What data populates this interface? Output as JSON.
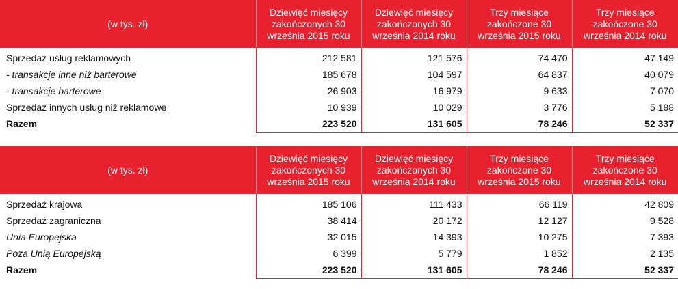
{
  "table1": {
    "unit_label": "(w tys. zł)",
    "headers": [
      "Dziewięć miesięcy zakończonych 30 września 2015 roku",
      "Dziewięć miesięcy zakończonych 30 września 2014 roku",
      "Trzy miesiące zakończone 30 września 2015 roku",
      "Trzy miesiące zakończone 30 września 2014 roku"
    ],
    "rows": [
      {
        "label": "Sprzedaż usług reklamowych",
        "values": [
          "212 581",
          "121 576",
          "74 470",
          "47 149"
        ]
      },
      {
        "label": "- transakcje inne niż barterowe",
        "values": [
          "185 678",
          "104 597",
          "64 837",
          "40 079"
        ]
      },
      {
        "label": "- transakcje barterowe",
        "values": [
          "26 903",
          "16 979",
          "9 633",
          "7 070"
        ]
      },
      {
        "label": "Sprzedaż innych usług niż reklamowe",
        "values": [
          "10 939",
          "10 029",
          "3 776",
          "5 188"
        ]
      },
      {
        "label": "Razem",
        "values": [
          "223 520",
          "131 605",
          "78 246",
          "52 337"
        ]
      }
    ]
  },
  "table2": {
    "unit_label": "(w tys. zł)",
    "headers": [
      "Dziewięć miesięcy zakończonych 30 września 2015 roku",
      "Dziewięć miesięcy zakończonych 30 września 2014 roku",
      "Trzy miesiące zakończone 30 września 2015 roku",
      "Trzy miesiące zakończone 30 września 2014 roku"
    ],
    "rows": [
      {
        "label": "Sprzedaż krajowa",
        "values": [
          "185 106",
          "111 433",
          "66 119",
          "42 809"
        ]
      },
      {
        "label": "Sprzedaż zagraniczna",
        "values": [
          "38 414",
          "20 172",
          "12 127",
          "9 528"
        ]
      },
      {
        "label": "Unia Europejska",
        "values": [
          "32 015",
          "14 393",
          "10 275",
          "7 393"
        ]
      },
      {
        "label": "Poza Unią Europejską",
        "values": [
          "6 399",
          "5 779",
          "1 852",
          "2 135"
        ]
      },
      {
        "label": "Razem",
        "values": [
          "223 520",
          "131 605",
          "78 246",
          "52 337"
        ]
      }
    ]
  },
  "colors": {
    "header_bg": "#e8212f",
    "border": "#e8212f",
    "header_text": "#ffffff"
  }
}
